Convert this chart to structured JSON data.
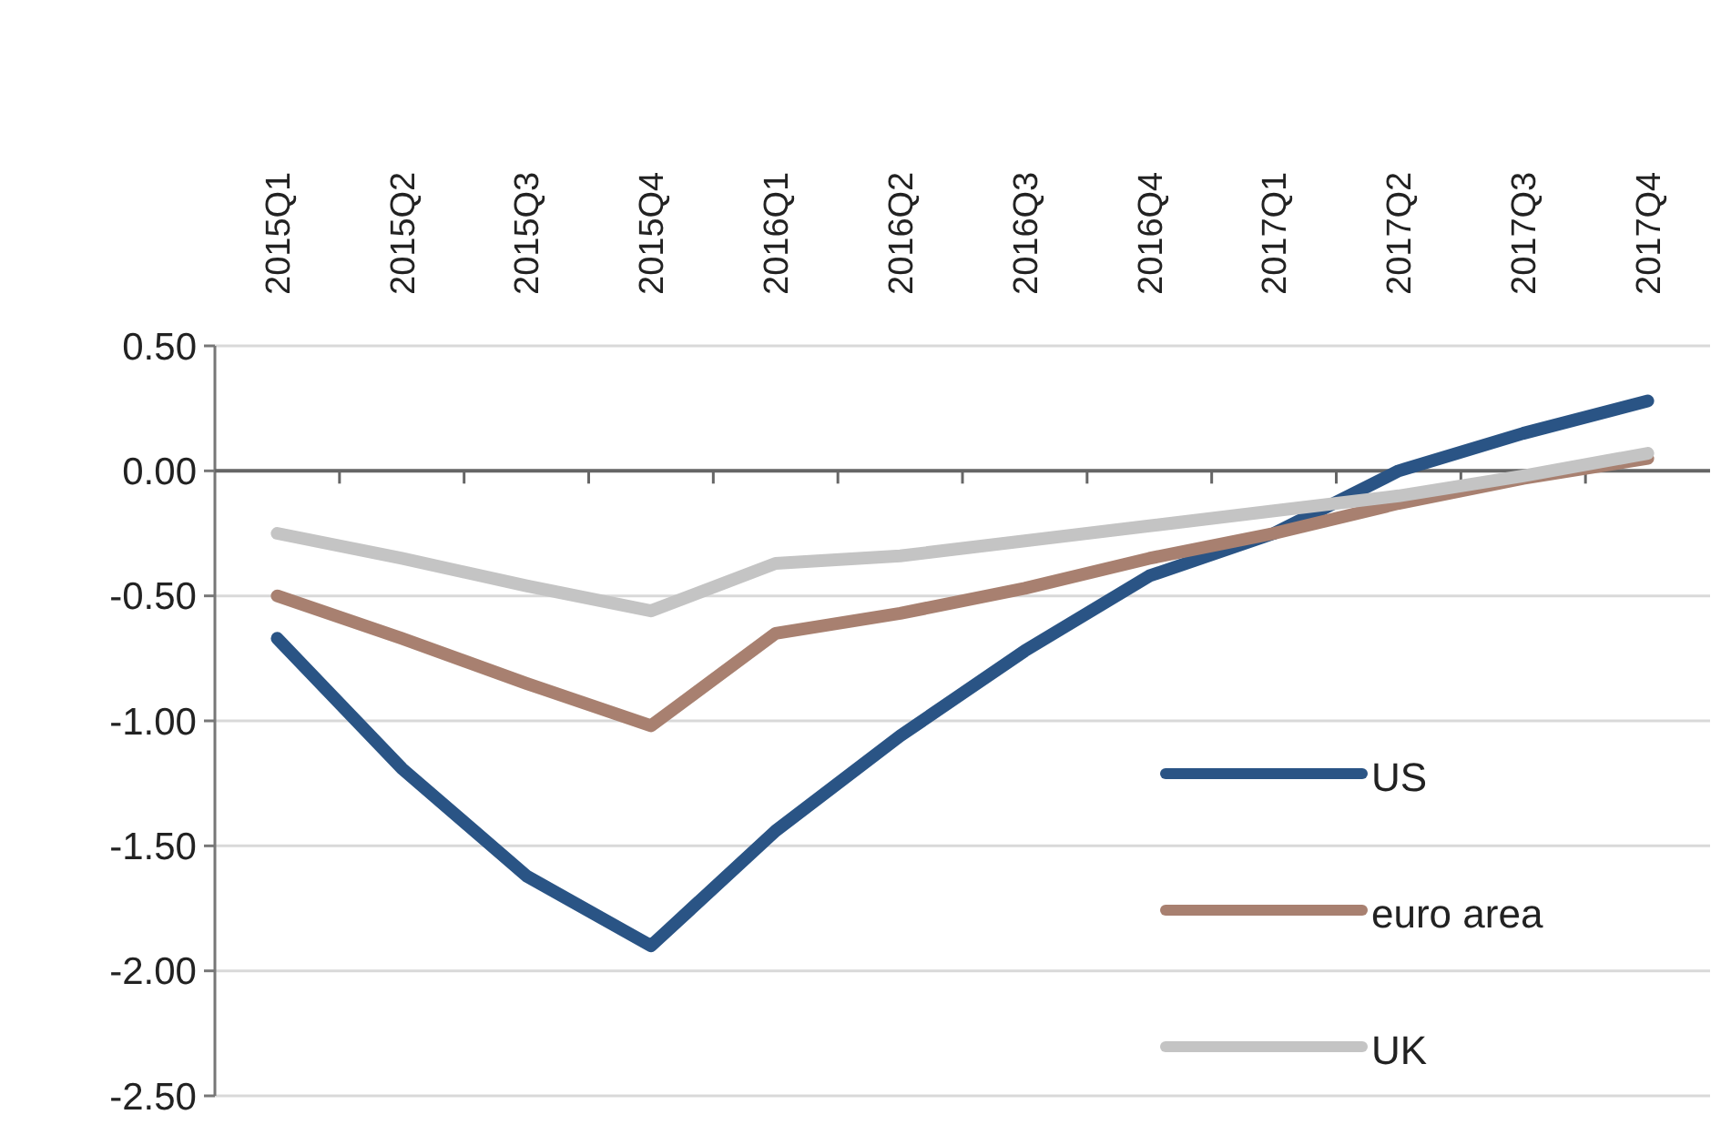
{
  "chart_data": {
    "type": "line",
    "categories": [
      "2015Q1",
      "2015Q2",
      "2015Q3",
      "2015Q4",
      "2016Q1",
      "2016Q2",
      "2016Q3",
      "2016Q4",
      "2017Q1",
      "2017Q2",
      "2017Q3",
      "2017Q4"
    ],
    "series": [
      {
        "name": "US",
        "color": "#2a5485",
        "values": [
          -0.67,
          -1.19,
          -1.62,
          -1.9,
          -1.44,
          -1.06,
          -0.72,
          -0.42,
          -0.25,
          0.0,
          0.15,
          0.28
        ]
      },
      {
        "name": "euro area",
        "color": "#a88070",
        "values": [
          -0.5,
          -0.67,
          -0.85,
          -1.02,
          -0.65,
          -0.57,
          -0.47,
          -0.35,
          -0.25,
          -0.13,
          -0.03,
          0.05
        ]
      },
      {
        "name": "UK",
        "color": "#c4c4c4",
        "values": [
          -0.25,
          -0.35,
          -0.46,
          -0.56,
          -0.37,
          -0.34,
          -0.28,
          -0.22,
          -0.16,
          -0.1,
          -0.02,
          0.07
        ]
      }
    ],
    "ylim": [
      -2.5,
      0.5
    ],
    "yticks": [
      {
        "value": -2.5,
        "label": "-2.50"
      },
      {
        "value": -2,
        "label": "-2.00"
      },
      {
        "value": -1.5,
        "label": "-1.50"
      },
      {
        "value": -1,
        "label": "-1.00"
      },
      {
        "value": -0.5,
        "label": "-0.50"
      },
      {
        "value": 0,
        "label": "0.00"
      },
      {
        "value": 0.5,
        "label": "0.50"
      }
    ],
    "grid": "y",
    "legend": "bottom right",
    "marker": "none",
    "line_style": "solid"
  }
}
